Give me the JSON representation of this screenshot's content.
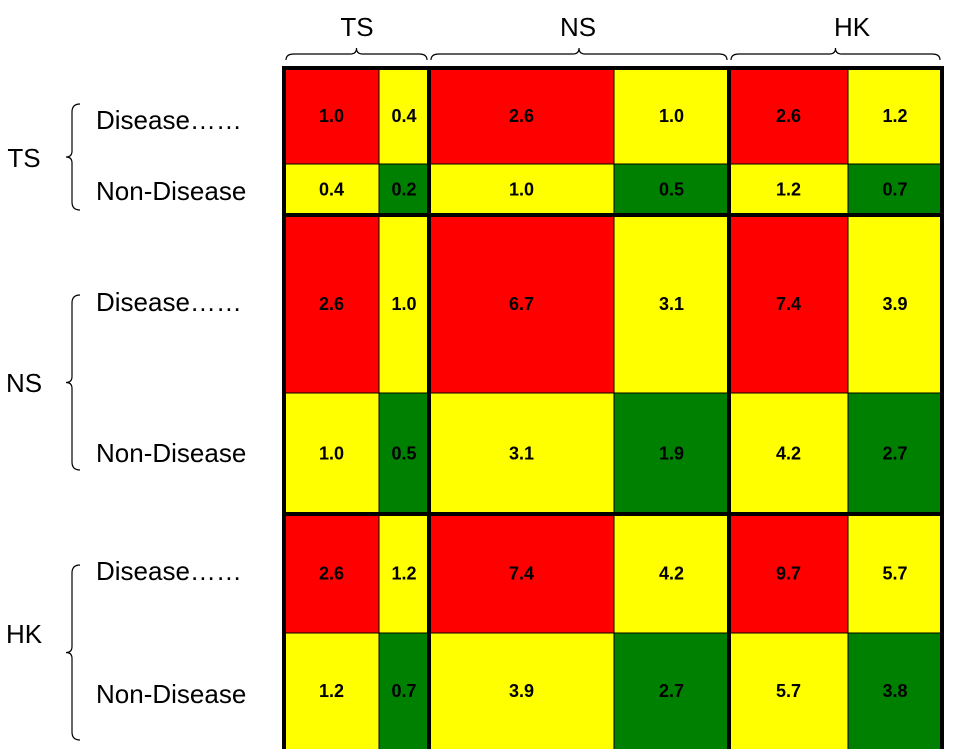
{
  "colors": {
    "red": "#ff0000",
    "yellow": "#ffff00",
    "green": "#008000",
    "border": "#000000"
  },
  "chart_data": {
    "type": "heatmap",
    "column_groups": [
      "TS",
      "NS",
      "HK"
    ],
    "row_groups": [
      "TS",
      "NS",
      "HK"
    ],
    "subgroups": [
      "Disease……",
      "Non-Disease"
    ],
    "values": [
      [
        1.0,
        0.4,
        2.6,
        1.0,
        2.6,
        1.2
      ],
      [
        0.4,
        0.2,
        1.0,
        0.5,
        1.2,
        0.7
      ],
      [
        2.6,
        1.0,
        6.7,
        3.1,
        7.4,
        3.9
      ],
      [
        1.0,
        0.5,
        3.1,
        1.9,
        4.2,
        2.7
      ],
      [
        2.6,
        1.2,
        7.4,
        4.2,
        9.7,
        5.7
      ],
      [
        1.2,
        0.7,
        3.9,
        2.7,
        5.7,
        3.8
      ]
    ],
    "value_labels": [
      [
        "1.0",
        "0.4",
        "2.6",
        "1.0",
        "2.6",
        "1.2"
      ],
      [
        "0.4",
        "0.2",
        "1.0",
        "0.5",
        "1.2",
        "0.7"
      ],
      [
        "2.6",
        "1.0",
        "6.7",
        "3.1",
        "7.4",
        "3.9"
      ],
      [
        "1.0",
        "0.5",
        "3.1",
        "1.9",
        "4.2",
        "2.7"
      ],
      [
        "2.6",
        "1.2",
        "7.4",
        "4.2",
        "9.7",
        "5.7"
      ],
      [
        "1.2",
        "0.7",
        "3.9",
        "2.7",
        "5.7",
        "3.8"
      ]
    ],
    "cell_colors": [
      [
        "red",
        "yellow",
        "red",
        "yellow",
        "red",
        "yellow"
      ],
      [
        "yellow",
        "green",
        "yellow",
        "green",
        "yellow",
        "green"
      ],
      [
        "red",
        "yellow",
        "red",
        "yellow",
        "red",
        "yellow"
      ],
      [
        "yellow",
        "green",
        "yellow",
        "green",
        "yellow",
        "green"
      ],
      [
        "red",
        "yellow",
        "red",
        "yellow",
        "red",
        "yellow"
      ],
      [
        "yellow",
        "green",
        "yellow",
        "green",
        "yellow",
        "green"
      ]
    ]
  }
}
